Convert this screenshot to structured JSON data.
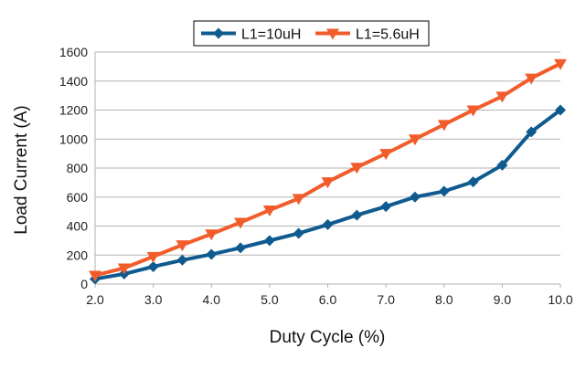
{
  "chart_data": {
    "type": "line",
    "xlabel": "Duty Cycle (%)",
    "ylabel": "Load Current (A)",
    "xlim": [
      2.0,
      10.0
    ],
    "ylim": [
      0,
      1600
    ],
    "x_ticks": [
      "2.0",
      "3.0",
      "4.0",
      "5.0",
      "6.0",
      "7.0",
      "8.0",
      "9.0",
      "10.0"
    ],
    "y_ticks": [
      "0",
      "200",
      "400",
      "600",
      "800",
      "1000",
      "1200",
      "1400",
      "1600"
    ],
    "grid": "horizontal",
    "legend_position": "top-center",
    "x": [
      2.0,
      2.5,
      3.0,
      3.5,
      4.0,
      4.5,
      5.0,
      5.5,
      6.0,
      6.5,
      7.0,
      7.5,
      8.0,
      8.5,
      9.0,
      9.5,
      10.0
    ],
    "series": [
      {
        "name": "L1=10uH",
        "color": "#0f5b8f",
        "marker": "diamond",
        "values": [
          35,
          70,
          120,
          165,
          205,
          250,
          300,
          350,
          410,
          475,
          535,
          600,
          640,
          705,
          820,
          1050,
          1200
        ]
      },
      {
        "name": "L1=5.6uH",
        "color": "#f25c2a",
        "marker": "triangle-down",
        "values": [
          60,
          110,
          190,
          270,
          345,
          425,
          510,
          590,
          705,
          805,
          900,
          1000,
          1100,
          1200,
          1295,
          1420,
          1520
        ]
      }
    ]
  }
}
